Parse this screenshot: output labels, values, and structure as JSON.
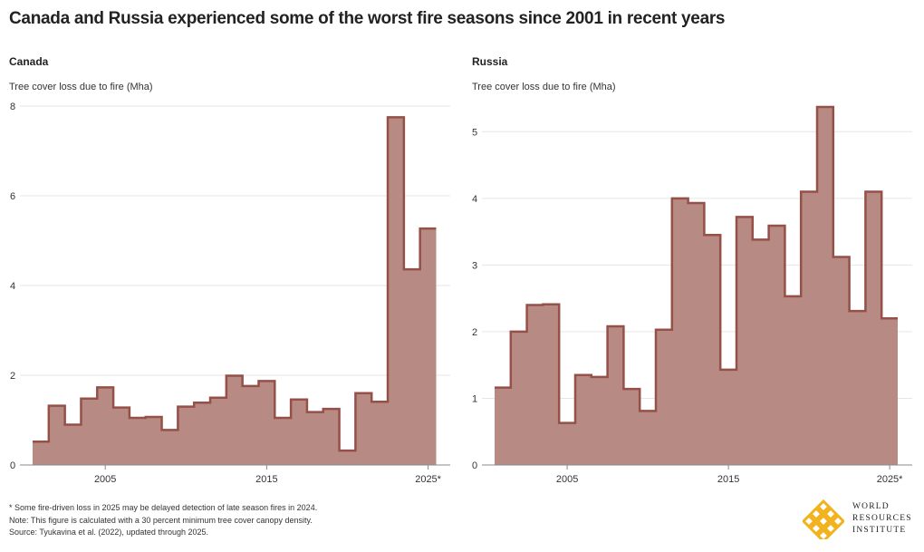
{
  "title": "Canada and Russia experienced some of the worst fire seasons since 2001 in recent years",
  "colors": {
    "fill": "#b78a84",
    "stroke": "#955048",
    "grid": "#e6e6e6",
    "axis": "#888888"
  },
  "chart_data": [
    {
      "type": "area",
      "step": true,
      "title": "Canada",
      "ylabel": "Tree cover loss due to fire (Mha)",
      "xlabel": "",
      "x_tick_labels": [
        "2005",
        "2015",
        "2025*"
      ],
      "x_ticks": [
        2005,
        2015,
        2025
      ],
      "y_ticks": [
        0,
        2,
        4,
        6,
        8
      ],
      "ylim": [
        0,
        8
      ],
      "grid": true,
      "x": [
        2001,
        2002,
        2003,
        2004,
        2005,
        2006,
        2007,
        2008,
        2009,
        2010,
        2011,
        2012,
        2013,
        2014,
        2015,
        2016,
        2017,
        2018,
        2019,
        2020,
        2021,
        2022,
        2023,
        2024,
        2025
      ],
      "values": [
        0.52,
        1.32,
        0.9,
        1.48,
        1.73,
        1.28,
        1.05,
        1.07,
        0.78,
        1.3,
        1.39,
        1.5,
        1.99,
        1.76,
        1.87,
        1.05,
        1.46,
        1.18,
        1.25,
        0.32,
        1.6,
        1.41,
        7.75,
        4.36,
        5.27
      ]
    },
    {
      "type": "area",
      "step": true,
      "title": "Russia",
      "ylabel": "Tree cover loss due to fire (Mha)",
      "xlabel": "",
      "x_tick_labels": [
        "2005",
        "2015",
        "2025*"
      ],
      "x_ticks": [
        2005,
        2015,
        2025
      ],
      "y_ticks": [
        0,
        1,
        2,
        3,
        4,
        5
      ],
      "ylim": [
        0,
        5.5
      ],
      "grid": true,
      "x": [
        2001,
        2002,
        2003,
        2004,
        2005,
        2006,
        2007,
        2008,
        2009,
        2010,
        2011,
        2012,
        2013,
        2014,
        2015,
        2016,
        2017,
        2018,
        2019,
        2020,
        2021,
        2022,
        2023,
        2024,
        2025
      ],
      "values": [
        1.16,
        2.0,
        2.4,
        2.41,
        0.63,
        1.35,
        1.32,
        2.08,
        1.14,
        0.81,
        2.03,
        4.0,
        3.93,
        3.45,
        1.43,
        3.72,
        3.38,
        3.59,
        2.53,
        4.1,
        5.37,
        3.12,
        2.31,
        4.1,
        2.2
      ]
    }
  ],
  "footnotes": {
    "line1": "* Some fire-driven loss in 2025 may be delayed detection of late season fires in 2024.",
    "line2": "Note: This figure is calculated with a 30 percent minimum tree cover canopy density.",
    "line3": "Source: Tyukavina et al. (2022), updated through 2025."
  },
  "logo": {
    "line1": "WORLD",
    "line2": "RESOURCES",
    "line3": "INSTITUTE",
    "icon": "wri-logo-icon",
    "color": "#f2b21b"
  }
}
